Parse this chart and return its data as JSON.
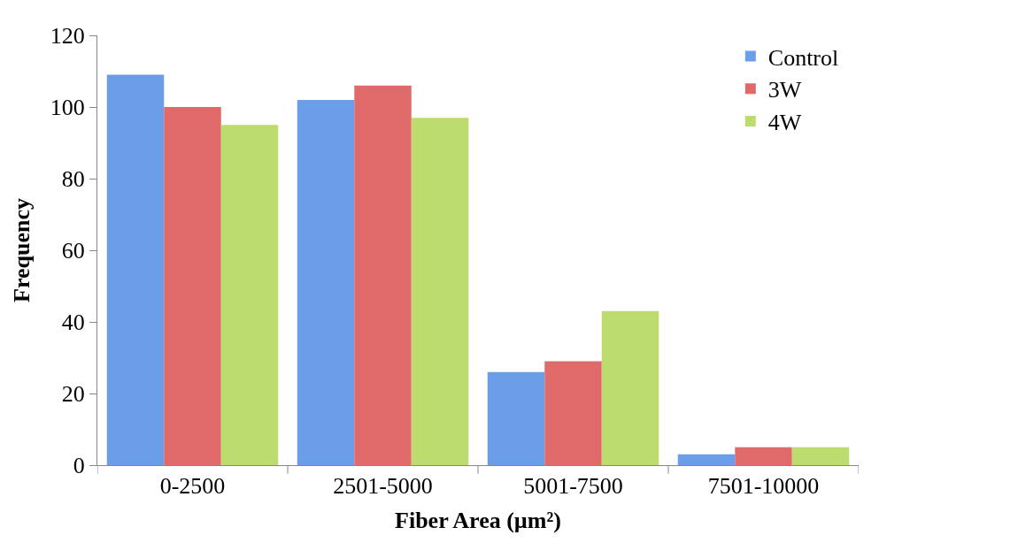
{
  "chart_data": {
    "type": "bar",
    "xlabel": "Fiber Area (µm²)",
    "ylabel": "Frequency",
    "categories": [
      "0-2500",
      "2501-5000",
      "5001-7500",
      "7501-10000"
    ],
    "series": [
      {
        "name": "Control",
        "color": "#6a9ee8",
        "values": [
          109,
          102,
          26,
          3
        ]
      },
      {
        "name": "3W",
        "color": "#e06a6a",
        "values": [
          100,
          106,
          29,
          5
        ]
      },
      {
        "name": "4W",
        "color": "#bcdc6e",
        "values": [
          95,
          97,
          43,
          5
        ]
      }
    ],
    "ylim": [
      0,
      120
    ],
    "yticks": [
      0,
      20,
      40,
      60,
      80,
      100,
      120
    ],
    "legend": "top right"
  }
}
